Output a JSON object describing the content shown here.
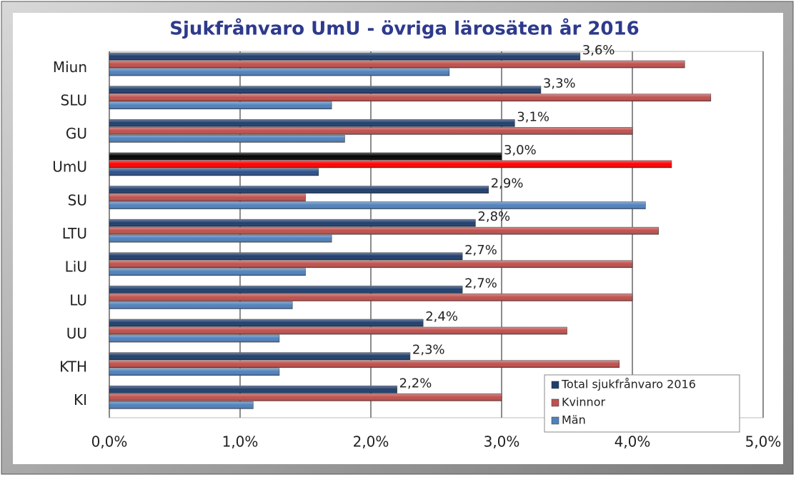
{
  "chart_data": {
    "type": "barh",
    "title": "Sjukfrånvaro UmU - övriga lärosäten år 2016",
    "categories": [
      "Miun",
      "SLU",
      "GU",
      "UmU",
      "SU",
      "LTU",
      "LiU",
      "LU",
      "UU",
      "KTH",
      "KI"
    ],
    "series": [
      {
        "name": "Total sjukfrånvaro 2016",
        "color": "#1f3e6e",
        "colors": [
          "#1f3e6e",
          "#1f3e6e",
          "#1f3e6e",
          "#000000",
          "#1f3e6e",
          "#1f3e6e",
          "#1f3e6e",
          "#1f3e6e",
          "#1f3e6e",
          "#1f3e6e",
          "#1f3e6e"
        ],
        "values": [
          3.6,
          3.3,
          3.1,
          3.0,
          2.9,
          2.8,
          2.7,
          2.7,
          2.4,
          2.3,
          2.2
        ],
        "value_labels": [
          "3,6%",
          "3,3%",
          "3,1%",
          "3,0%",
          "2,9%",
          "2,8%",
          "2,7%",
          "2,7%",
          "2,4%",
          "2,3%",
          "2,2%"
        ]
      },
      {
        "name": "Kvinnor",
        "color": "#c0504d",
        "colors": [
          "#c0504d",
          "#c0504d",
          "#c0504d",
          "#ff0000",
          "#c0504d",
          "#c0504d",
          "#c0504d",
          "#c0504d",
          "#c0504d",
          "#c0504d",
          "#c0504d"
        ],
        "values": [
          4.4,
          4.6,
          4.0,
          4.3,
          1.5,
          4.2,
          4.0,
          4.0,
          3.5,
          3.9,
          3.0
        ]
      },
      {
        "name": "Män",
        "color": "#4f81bd",
        "colors": [
          "#4f81bd",
          "#4f81bd",
          "#4f81bd",
          "#2c4f8a",
          "#4f81bd",
          "#4f81bd",
          "#4f81bd",
          "#4f81bd",
          "#4f81bd",
          "#4f81bd",
          "#4f81bd"
        ],
        "values": [
          2.6,
          1.7,
          1.8,
          1.6,
          4.1,
          1.7,
          1.5,
          1.4,
          1.3,
          1.3,
          1.1
        ]
      }
    ],
    "xlim": [
      0,
      5
    ],
    "xticks": [
      {
        "value": 0,
        "label": "0,0%"
      },
      {
        "value": 1,
        "label": "1,0%"
      },
      {
        "value": 2,
        "label": "2,0%"
      },
      {
        "value": 3,
        "label": "3,0%"
      },
      {
        "value": 4,
        "label": "4,0%"
      },
      {
        "value": 5,
        "label": "5,0%"
      }
    ],
    "grid": true,
    "legend": "lower right"
  }
}
